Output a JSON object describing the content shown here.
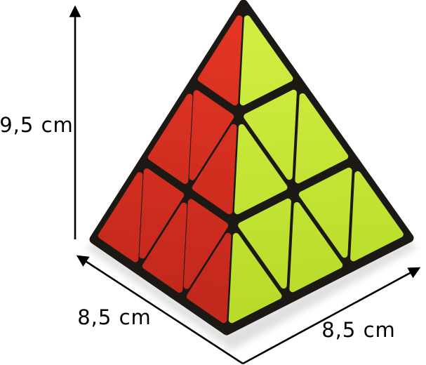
{
  "background": "#ffffff",
  "annotation": {
    "arrow_color": "#000000",
    "text_color": "#000000",
    "height": {
      "label": "9,5 cm"
    },
    "left_edge": {
      "label": "8,5 cm"
    },
    "right_edge": {
      "label": "8,5 cm"
    }
  },
  "pyraminx": {
    "description": "black pyraminx pyramid puzzle, red left face, lime-green right face",
    "frame_color": "#1c1914",
    "left_face_color_top": "#e23524",
    "left_face_color_bottom": "#c3281c",
    "right_face_color_top": "#d0ee42",
    "right_face_color_bottom": "#b8dc29",
    "shadow_color": "#707070"
  }
}
